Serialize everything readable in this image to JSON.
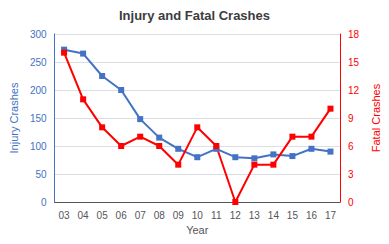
{
  "chart_data": {
    "type": "line",
    "title": "Injury and Fatal Crashes",
    "xlabel": "Year",
    "ylabel": "Injury Crashes",
    "y2label": "Fatal Crashes",
    "categories": [
      "03",
      "04",
      "05",
      "06",
      "07",
      "08",
      "09",
      "10",
      "11",
      "12",
      "13",
      "14",
      "15",
      "16",
      "17"
    ],
    "series": [
      {
        "color": "#4472C4",
        "marker": "square",
        "values": [
          272,
          265,
          225,
          200,
          148,
          115,
          95,
          80,
          95,
          80,
          78,
          85,
          82,
          95,
          90
        ]
      },
      {
        "color": "#FF0000",
        "marker": "square",
        "axis": "y2",
        "values": [
          16,
          11,
          8,
          6,
          7,
          6,
          4,
          8,
          6,
          0,
          4,
          4,
          7,
          7,
          10
        ]
      }
    ],
    "ylim": [
      0,
      300
    ],
    "yticks": [
      0,
      50,
      100,
      150,
      200,
      250,
      300
    ],
    "y2lim": [
      0,
      18
    ],
    "y2ticks": [
      0,
      3,
      6,
      9,
      12,
      15,
      18
    ],
    "grid": true
  }
}
